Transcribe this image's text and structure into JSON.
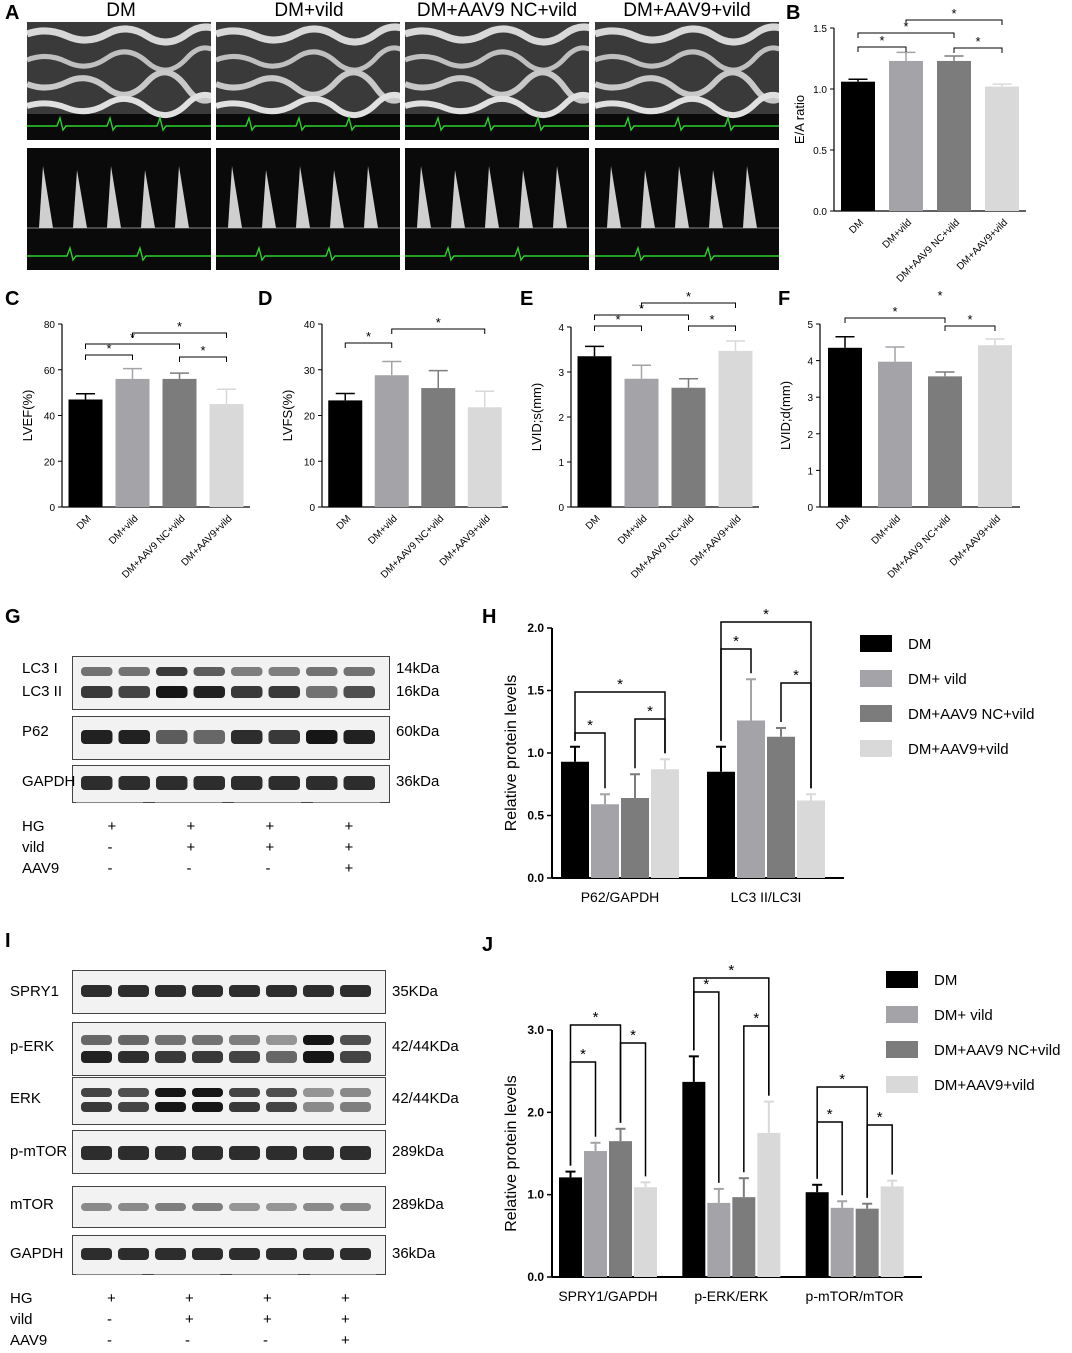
{
  "panel_labels": {
    "A": "A",
    "B": "B",
    "C": "C",
    "D": "D",
    "E": "E",
    "F": "F",
    "G": "G",
    "H": "H",
    "I": "I",
    "J": "J"
  },
  "echo": {
    "titles": [
      "DM",
      "DM+vild",
      "DM+AAV9 NC+vild",
      "DM+AAV9+vild"
    ]
  },
  "blot_g": {
    "bands": [
      {
        "label": "LC3 I",
        "kda": "14kDa"
      },
      {
        "label": "LC3 II",
        "kda": "16kDa"
      },
      {
        "label": "P62",
        "kda": "60kDa"
      },
      {
        "label": "GAPDH",
        "kda": "36kDa"
      }
    ],
    "conditions": {
      "rows": [
        "HG",
        "vild",
        "AAV9"
      ],
      "signs": [
        [
          "+",
          "+",
          "+",
          "+"
        ],
        [
          "-",
          "+",
          "+",
          "+"
        ],
        [
          "-",
          "-",
          "-",
          "+"
        ]
      ]
    }
  },
  "blot_i": {
    "bands": [
      {
        "label": "SPRY1",
        "kda": "35KDa"
      },
      {
        "label": "p-ERK",
        "kda": "42/44KDa"
      },
      {
        "label": "ERK",
        "kda": "42/44KDa"
      },
      {
        "label": "p-mTOR",
        "kda": "289kDa"
      },
      {
        "label": "mTOR",
        "kda": "289kDa"
      },
      {
        "label": "GAPDH",
        "kda": "36kDa"
      }
    ],
    "conditions": {
      "rows": [
        "HG",
        "vild",
        "AAV9"
      ],
      "signs": [
        [
          "+",
          "+",
          "+",
          "+"
        ],
        [
          "-",
          "+",
          "+",
          "+"
        ],
        [
          "-",
          "-",
          "-",
          "+"
        ]
      ]
    }
  },
  "colors": {
    "DM": "#000000",
    "DM+vild": "#a3a3a8",
    "DM+AAV9 NC+vild": "#7c7c7c",
    "DM+AAV9+vild": "#d9d9d9"
  },
  "chart_data": [
    {
      "panel": "B",
      "type": "bar",
      "categories": [
        "DM",
        "DM+vild",
        "DM+AAV9 NC+vild",
        "DM+AAV9+vild"
      ],
      "values": [
        1.06,
        1.23,
        1.23,
        1.02
      ],
      "errors": [
        0.02,
        0.07,
        0.04,
        0.02
      ],
      "ylabel": "E/A ratio",
      "ylim": [
        0,
        1.5
      ],
      "yticks": [
        "0.0",
        "0.5",
        "1.0",
        "1.5"
      ],
      "significance": [
        [
          0,
          1,
          "*"
        ],
        [
          1,
          3,
          "*"
        ],
        [
          0,
          2,
          "*"
        ],
        [
          2,
          3,
          "*"
        ]
      ]
    },
    {
      "panel": "C",
      "type": "bar",
      "categories": [
        "DM",
        "DM+vild",
        "DM+AAV9 NC+vild",
        "DM+AAV9+vild"
      ],
      "values": [
        47,
        56,
        56,
        45
      ],
      "errors": [
        2.5,
        4.5,
        2.5,
        6.5
      ],
      "ylabel": "LVEF(%)",
      "ylim": [
        0,
        80
      ],
      "yticks": [
        "0",
        "20",
        "40",
        "60",
        "80"
      ],
      "significance": [
        [
          0,
          1,
          "*"
        ],
        [
          0,
          2,
          "*"
        ],
        [
          1,
          3,
          "*"
        ],
        [
          2,
          3,
          "*"
        ]
      ]
    },
    {
      "panel": "D",
      "type": "bar",
      "categories": [
        "DM",
        "DM+vild",
        "DM+AAV9 NC+vild",
        "DM+AAV9+vild"
      ],
      "values": [
        23.3,
        28.8,
        26,
        21.8
      ],
      "errors": [
        1.5,
        3,
        3.8,
        3.5
      ],
      "ylabel": "LVFS(%)",
      "ylim": [
        0,
        40
      ],
      "yticks": [
        "0",
        "10",
        "20",
        "30",
        "40"
      ],
      "significance": [
        [
          0,
          1,
          "*"
        ],
        [
          1,
          3,
          "*"
        ]
      ]
    },
    {
      "panel": "E",
      "type": "bar",
      "categories": [
        "DM",
        "DM+vild",
        "DM+AAV9 NC+vild",
        "DM+AAV9+vild"
      ],
      "values": [
        3.35,
        2.85,
        2.65,
        3.47
      ],
      "errors": [
        0.22,
        0.3,
        0.2,
        0.22
      ],
      "ylabel": "LVID;s(mm)",
      "ylim": [
        0,
        4
      ],
      "yticks": [
        "0",
        "1",
        "2",
        "3",
        "4"
      ],
      "significance": [
        [
          0,
          1,
          "*"
        ],
        [
          0,
          2,
          "*"
        ],
        [
          1,
          3,
          "*"
        ],
        [
          2,
          3,
          "*"
        ]
      ]
    },
    {
      "panel": "F",
      "type": "bar",
      "categories": [
        "DM",
        "DM+vild",
        "DM+AAV9 NC+vild",
        "DM+AAV9+vild"
      ],
      "values": [
        4.35,
        3.97,
        3.57,
        4.42
      ],
      "errors": [
        0.3,
        0.4,
        0.12,
        0.17
      ],
      "ylabel": "LVID;d(mm)",
      "ylim": [
        0,
        5
      ],
      "yticks": [
        "0",
        "1",
        "2",
        "3",
        "4",
        "5"
      ],
      "significance": [
        [
          0,
          2,
          "*"
        ],
        [
          2,
          3,
          "*"
        ]
      ],
      "floating_star": "*"
    },
    {
      "panel": "H",
      "type": "bar",
      "categories": [
        "P62/GAPDH",
        "LC3 II/LC3I"
      ],
      "series": [
        {
          "name": "DM",
          "values": [
            0.93,
            0.85
          ],
          "errors": [
            0.12,
            0.2
          ]
        },
        {
          "name": "DM+ vild",
          "values": [
            0.59,
            1.26
          ],
          "errors": [
            0.08,
            0.33
          ]
        },
        {
          "name": "DM+AAV9 NC+vild",
          "values": [
            0.64,
            1.13
          ],
          "errors": [
            0.19,
            0.07
          ]
        },
        {
          "name": "DM+AAV9+vild",
          "values": [
            0.87,
            0.62
          ],
          "errors": [
            0.08,
            0.05
          ]
        }
      ],
      "ylabel": "Relative protein levels",
      "ylim": [
        0,
        2
      ],
      "yticks": [
        "0.0",
        "0.5",
        "1.0",
        "1.5",
        "2.0"
      ]
    },
    {
      "panel": "J",
      "type": "bar",
      "categories": [
        "SPRY1/GAPDH",
        "p-ERK/ERK",
        "p-mTOR/mTOR"
      ],
      "series": [
        {
          "name": "DM",
          "values": [
            1.21,
            2.37,
            1.03
          ],
          "errors": [
            0.07,
            0.31,
            0.09
          ]
        },
        {
          "name": "DM+ vild",
          "values": [
            1.53,
            0.9,
            0.84
          ],
          "errors": [
            0.1,
            0.17,
            0.08
          ]
        },
        {
          "name": "DM+AAV9 NC+vild",
          "values": [
            1.65,
            0.97,
            0.83
          ],
          "errors": [
            0.15,
            0.23,
            0.06
          ]
        },
        {
          "name": "DM+AAV9+vild",
          "values": [
            1.09,
            1.75,
            1.1
          ],
          "errors": [
            0.06,
            0.38,
            0.07
          ]
        }
      ],
      "ylabel": "Relative protein levels",
      "ylim": [
        0,
        3
      ],
      "yticks": [
        "0.0",
        "1.0",
        "2.0",
        "3.0"
      ]
    }
  ]
}
